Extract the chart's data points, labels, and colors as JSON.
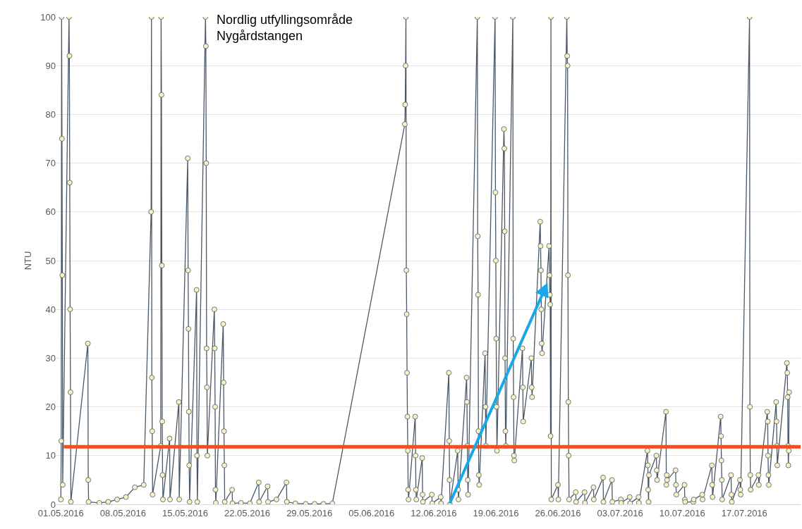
{
  "chart_data": {
    "type": "line",
    "title": "Nordlig utfyllingsområde\nNygårdstangen",
    "ylabel": "NTU",
    "marker": "circle",
    "grid": "y",
    "xlim": [
      "2016-04-30T12:00",
      "2016-07-23T08:00"
    ],
    "ylim": [
      0,
      100
    ],
    "yticks": [
      0,
      10,
      20,
      30,
      40,
      50,
      60,
      70,
      80,
      90,
      100
    ],
    "xticks": [
      {
        "value": "2016-05-01",
        "label": "01.05.2016"
      },
      {
        "value": "2016-05-08",
        "label": "08.05.2016"
      },
      {
        "value": "2016-05-15",
        "label": "15.05.2016"
      },
      {
        "value": "2016-05-22",
        "label": "22.05.2016"
      },
      {
        "value": "2016-05-29",
        "label": "29.05.2016"
      },
      {
        "value": "2016-06-05",
        "label": "05.06.2016"
      },
      {
        "value": "2016-06-12",
        "label": "12.06.2016"
      },
      {
        "value": "2016-06-19",
        "label": "19.06.2016"
      },
      {
        "value": "2016-06-26",
        "label": "26.06.2016"
      },
      {
        "value": "2016-07-03",
        "label": "03.07.2016"
      },
      {
        "value": "2016-07-10",
        "label": "10.07.2016"
      },
      {
        "value": "2016-07-17",
        "label": "17.07.2016"
      }
    ],
    "ref_lines": [
      {
        "axis": "y",
        "value": 11.8,
        "color": "#f04e23"
      }
    ],
    "series": [
      {
        "color": "#4b5967",
        "x": [
          "2016-05-01T00:00",
          "2016-05-01T01:00",
          "2016-05-01T02:00",
          "2016-05-01T03:00",
          "2016-05-01T04:00",
          "2016-05-01T05:00",
          "2016-05-01T22:00",
          "2016-05-01T23:00",
          "2016-05-02T00:00",
          "2016-05-02T01:00",
          "2016-05-02T02:00",
          "2016-05-02T03:00",
          "2016-05-04T01:00",
          "2016-05-04T02:00",
          "2016-05-04T03:00",
          "2016-05-05T08:00",
          "2016-05-06T08:00",
          "2016-05-07T08:00",
          "2016-05-08T08:00",
          "2016-05-09T08:00",
          "2016-05-10T08:00",
          "2016-05-11T04:00",
          "2016-05-11T05:00",
          "2016-05-11T06:00",
          "2016-05-11T07:00",
          "2016-05-11T08:00",
          "2016-05-12T06:00",
          "2016-05-12T07:00",
          "2016-05-12T08:00",
          "2016-05-12T09:00",
          "2016-05-12T10:00",
          "2016-05-12T11:00",
          "2016-05-12T12:00",
          "2016-05-13T06:00",
          "2016-05-13T07:00",
          "2016-05-14T07:00",
          "2016-05-14T08:00",
          "2016-05-15T07:00",
          "2016-05-15T08:00",
          "2016-05-15T09:00",
          "2016-05-15T10:00",
          "2016-05-15T11:00",
          "2016-05-15T12:00",
          "2016-05-16T07:00",
          "2016-05-16T08:00",
          "2016-05-16T09:00",
          "2016-05-17T07:00",
          "2016-05-17T08:00",
          "2016-05-17T09:00",
          "2016-05-17T10:00",
          "2016-05-17T11:00",
          "2016-05-17T12:00",
          "2016-05-18T07:00",
          "2016-05-18T08:00",
          "2016-05-18T09:00",
          "2016-05-18T10:00",
          "2016-05-18T11:00",
          "2016-05-19T07:00",
          "2016-05-19T08:00",
          "2016-05-19T09:00",
          "2016-05-19T10:00",
          "2016-05-19T11:00",
          "2016-05-20T07:00",
          "2016-05-20T08:00",
          "2016-05-21T07:00",
          "2016-05-22T07:00",
          "2016-05-23T07:00",
          "2016-05-23T08:00",
          "2016-05-24T07:00",
          "2016-05-24T08:00",
          "2016-05-25T07:00",
          "2016-05-26T10:00",
          "2016-05-26T11:00",
          "2016-05-27T10:00",
          "2016-05-28T14:00",
          "2016-05-29T14:00",
          "2016-05-30T14:00",
          "2016-05-31T14:00",
          "2016-06-08T18:00",
          "2016-06-08T19:00",
          "2016-06-08T20:00",
          "2016-06-08T21:00",
          "2016-06-08T22:00",
          "2016-06-08T23:00",
          "2016-06-09T00:00",
          "2016-06-09T01:00",
          "2016-06-09T02:00",
          "2016-06-09T03:00",
          "2016-06-09T04:00",
          "2016-06-09T22:00",
          "2016-06-09T23:00",
          "2016-06-10T00:00",
          "2016-06-10T01:00",
          "2016-06-10T17:00",
          "2016-06-10T18:00",
          "2016-06-10T19:00",
          "2016-06-11T19:00",
          "2016-06-11T20:00",
          "2016-06-12T19:00",
          "2016-06-12T20:00",
          "2016-06-13T17:00",
          "2016-06-13T18:00",
          "2016-06-13T19:00",
          "2016-06-13T20:00",
          "2016-06-14T17:00",
          "2016-06-14T18:00",
          "2016-06-14T19:00",
          "2016-06-15T17:00",
          "2016-06-15T18:00",
          "2016-06-15T19:00",
          "2016-06-15T20:00",
          "2016-06-15T21:00",
          "2016-06-16T22:00",
          "2016-06-16T23:00",
          "2016-06-17T00:00",
          "2016-06-17T01:00",
          "2016-06-17T02:00",
          "2016-06-17T03:00",
          "2016-06-17T19:00",
          "2016-06-17T20:00",
          "2016-06-17T21:00",
          "2016-06-18T22:00",
          "2016-06-18T23:00",
          "2016-06-19T00:00",
          "2016-06-19T01:00",
          "2016-06-19T02:00",
          "2016-06-19T03:00",
          "2016-06-19T22:00",
          "2016-06-19T23:00",
          "2016-06-20T00:00",
          "2016-06-20T01:00",
          "2016-06-20T02:00",
          "2016-06-20T03:00",
          "2016-06-20T22:00",
          "2016-06-20T23:00",
          "2016-06-21T00:00",
          "2016-06-21T01:00",
          "2016-06-21T02:00",
          "2016-06-22T00:00",
          "2016-06-22T01:00",
          "2016-06-22T02:00",
          "2016-06-23T00:00",
          "2016-06-23T01:00",
          "2016-06-23T02:00",
          "2016-06-24T00:00",
          "2016-06-24T01:00",
          "2016-06-24T02:00",
          "2016-06-24T03:00",
          "2016-06-24T04:00",
          "2016-06-24T05:00",
          "2016-06-25T00:00",
          "2016-06-25T01:00",
          "2016-06-25T02:00",
          "2016-06-25T03:00",
          "2016-06-25T04:00",
          "2016-06-25T05:00",
          "2016-06-25T06:00",
          "2016-06-26T00:00",
          "2016-06-26T01:00",
          "2016-06-27T00:00",
          "2016-06-27T01:00",
          "2016-06-27T02:00",
          "2016-06-27T03:00",
          "2016-06-27T04:00",
          "2016-06-27T05:00",
          "2016-06-27T06:00",
          "2016-06-28T00:00",
          "2016-06-28T01:00",
          "2016-06-29T00:00",
          "2016-06-29T01:00",
          "2016-06-30T00:00",
          "2016-06-30T01:00",
          "2016-07-01T02:00",
          "2016-07-01T03:00",
          "2016-07-02T02:00",
          "2016-07-02T03:00",
          "2016-07-03T02:00",
          "2016-07-03T03:00",
          "2016-07-04T02:00",
          "2016-07-04T03:00",
          "2016-07-05T02:00",
          "2016-07-05T03:00",
          "2016-07-06T02:00",
          "2016-07-06T03:00",
          "2016-07-06T04:00",
          "2016-07-06T05:00",
          "2016-07-06T06:00",
          "2016-07-07T02:00",
          "2016-07-07T03:00",
          "2016-07-07T04:00",
          "2016-07-08T04:00",
          "2016-07-08T05:00",
          "2016-07-08T06:00",
          "2016-07-08T07:00",
          "2016-07-09T06:00",
          "2016-07-09T07:00",
          "2016-07-09T08:00",
          "2016-07-10T06:00",
          "2016-07-10T07:00",
          "2016-07-10T08:00",
          "2016-07-11T06:00",
          "2016-07-11T07:00",
          "2016-07-12T06:00",
          "2016-07-12T07:00",
          "2016-07-13T08:00",
          "2016-07-13T09:00",
          "2016-07-13T10:00",
          "2016-07-14T08:00",
          "2016-07-14T09:00",
          "2016-07-14T10:00",
          "2016-07-14T11:00",
          "2016-07-14T12:00",
          "2016-07-15T12:00",
          "2016-07-15T13:00",
          "2016-07-15T14:00",
          "2016-07-16T12:00",
          "2016-07-16T13:00",
          "2016-07-16T14:00",
          "2016-07-17T14:00",
          "2016-07-17T15:00",
          "2016-07-17T16:00",
          "2016-07-17T17:00",
          "2016-07-18T14:00",
          "2016-07-18T15:00",
          "2016-07-19T14:00",
          "2016-07-19T15:00",
          "2016-07-19T16:00",
          "2016-07-19T17:00",
          "2016-07-19T18:00",
          "2016-07-20T14:00",
          "2016-07-20T15:00",
          "2016-07-20T16:00",
          "2016-07-20T17:00",
          "2016-07-21T19:00",
          "2016-07-21T20:00",
          "2016-07-21T21:00",
          "2016-07-21T22:00",
          "2016-07-21T23:00",
          "2016-07-22T00:00",
          "2016-07-22T01:00"
        ],
        "values": [
          1,
          13,
          100,
          75,
          47,
          4,
          100,
          92,
          66,
          40,
          23,
          0.5,
          33,
          5,
          0.5,
          0.3,
          0.5,
          1,
          1.5,
          3.5,
          4,
          60,
          100,
          26,
          15,
          2,
          12,
          100,
          84,
          49,
          17,
          6,
          1,
          13.5,
          1,
          21,
          1,
          71,
          48,
          36,
          19,
          8,
          0.5,
          44,
          10,
          0.5,
          100,
          94,
          70,
          32,
          24,
          10,
          40,
          32,
          20,
          3,
          0.3,
          37,
          25,
          15,
          8,
          0.5,
          3,
          0.2,
          0.3,
          0.2,
          4.5,
          0.5,
          3.7,
          0.5,
          1,
          4.5,
          0.5,
          0.2,
          0.1,
          0.1,
          0.1,
          0.2,
          78,
          82,
          90,
          100,
          48,
          39,
          27,
          18,
          11,
          3,
          1,
          18,
          10,
          3,
          1,
          9.5,
          2,
          0.5,
          2,
          0.2,
          1.5,
          0.2,
          27,
          13,
          5,
          0,
          11,
          3,
          1,
          26,
          21,
          12,
          5,
          2,
          100,
          55,
          43,
          15,
          6,
          4,
          31,
          20,
          12,
          100,
          64,
          50,
          34,
          20,
          11,
          77,
          73,
          56,
          30,
          15,
          12,
          100,
          34,
          22,
          10,
          9,
          32,
          24,
          17,
          30,
          24,
          22,
          58,
          53,
          48,
          40,
          33,
          31,
          53,
          47,
          43,
          41,
          14,
          100,
          1,
          4,
          1,
          100,
          92,
          90,
          47,
          21,
          10,
          1,
          2.5,
          0.5,
          2.5,
          0.3,
          3.5,
          1,
          5.5,
          0.5,
          5,
          0.5,
          1,
          0.3,
          1.5,
          0.2,
          1.5,
          0.3,
          11,
          8,
          3,
          0.5,
          6,
          10,
          7,
          5,
          19,
          4,
          6,
          5,
          7,
          4,
          2,
          4,
          1,
          0.5,
          0.5,
          1,
          2,
          1,
          8,
          4,
          1.5,
          18,
          14,
          9,
          5,
          1,
          6,
          2,
          0.5,
          5,
          3,
          2,
          100,
          20,
          6,
          3,
          6,
          4,
          19,
          17,
          10,
          6,
          4,
          21,
          17,
          12,
          8,
          29,
          27,
          22,
          12,
          8,
          11,
          23
        ]
      }
    ]
  }
}
